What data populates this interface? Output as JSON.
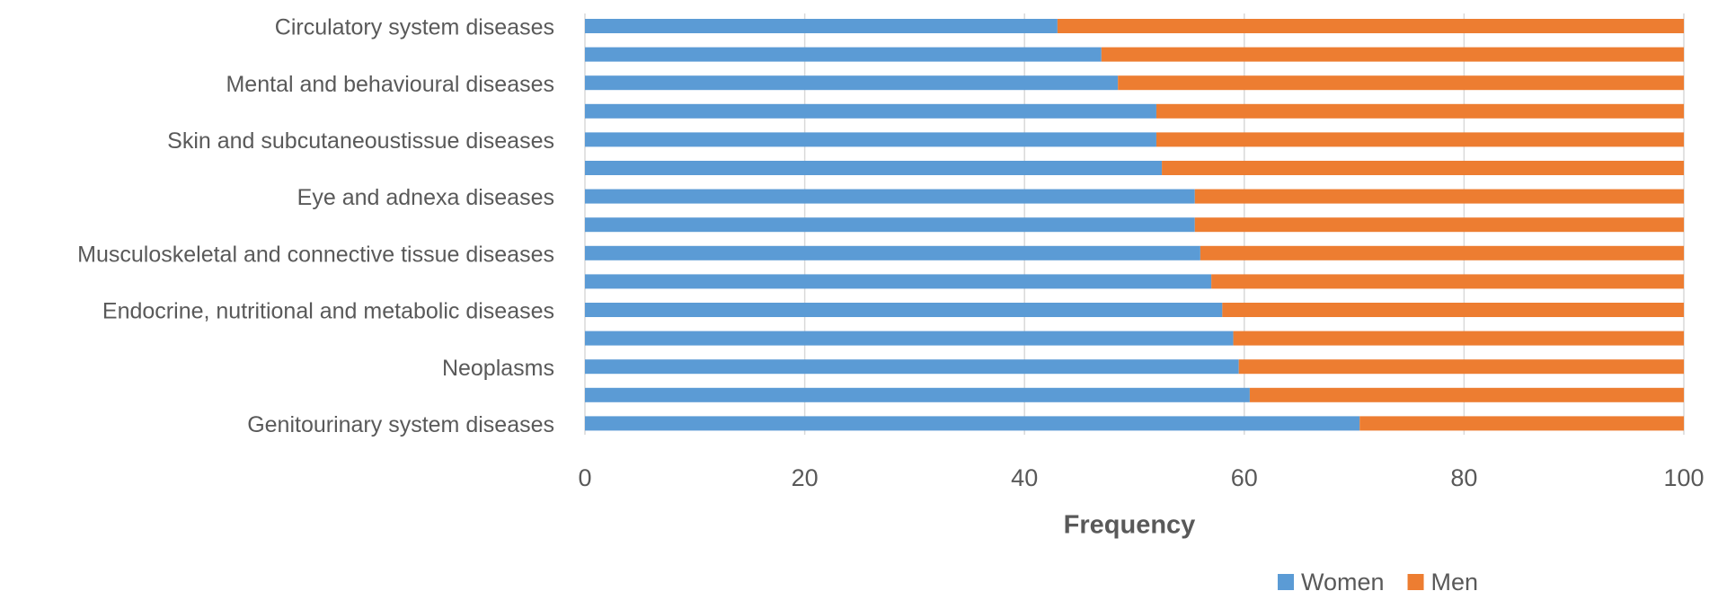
{
  "chart_data": {
    "type": "stacked-bar-horizontal",
    "categories": [
      "Circulatory system diseases",
      null,
      "Mental and behavioural diseases",
      null,
      "Skin and subcutaneoustissue diseases",
      null,
      "Eye and adnexa diseases",
      null,
      "Musculoskeletal and connective tissue diseases",
      null,
      "Endocrine, nutritional and metabolic diseases",
      null,
      "Neoplasms",
      null,
      "Genitourinary system diseases"
    ],
    "series": [
      {
        "name": "Women",
        "color": "#5b9bd5",
        "values": [
          43,
          47,
          48.5,
          52,
          52,
          52.5,
          55.5,
          55.5,
          56,
          57,
          58,
          59,
          59.5,
          60.5,
          70.5
        ]
      },
      {
        "name": "Men",
        "color": "#ed7d31",
        "values": [
          57,
          53,
          51.5,
          48,
          48,
          47.5,
          44.5,
          44.5,
          44,
          43,
          42,
          41,
          40.5,
          39.5,
          29.5
        ]
      }
    ],
    "x_label": "Frequency",
    "xlim": [
      0,
      100
    ],
    "xticks": [
      0,
      20,
      40,
      60,
      80,
      100
    ],
    "grid": true,
    "legend": "bottom"
  }
}
